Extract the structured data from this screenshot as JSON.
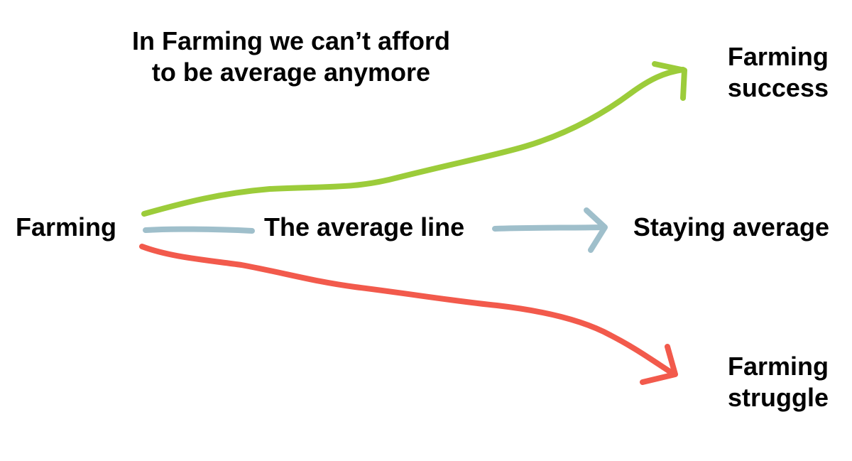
{
  "heading": {
    "line1": "In Farming we can’t afford",
    "line2": "to be average anymore"
  },
  "start_label": "Farming",
  "average_line_label": "The average line",
  "outcomes": {
    "success": {
      "line1": "Farming",
      "line2": "success"
    },
    "average": {
      "label": "Staying average"
    },
    "struggle": {
      "line1": "Farming",
      "line2": "struggle"
    }
  },
  "colors": {
    "success_arrow": "#9ccc3a",
    "average_arrow": "#9fbfcb",
    "struggle_arrow": "#f25a4c",
    "text": "#000000"
  }
}
